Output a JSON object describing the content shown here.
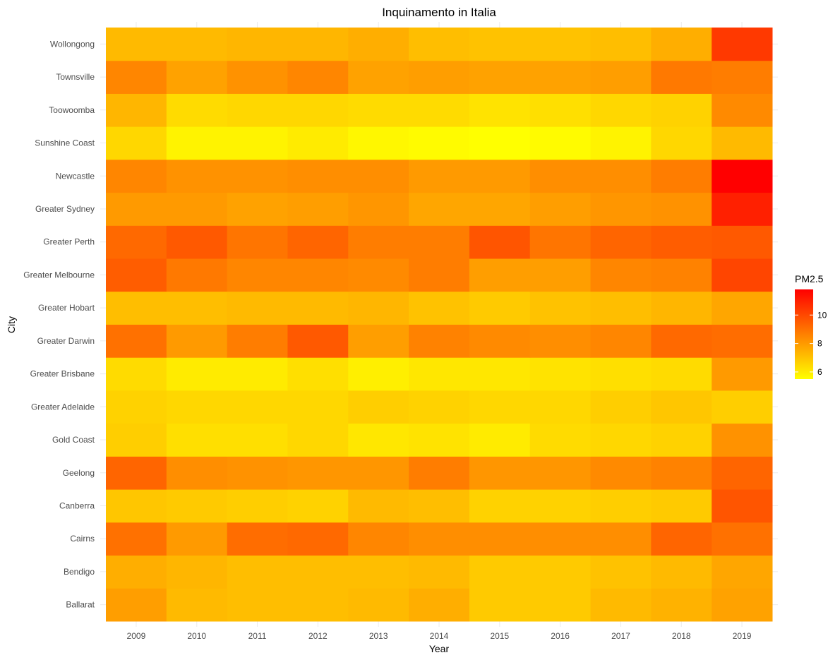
{
  "chart_data": {
    "type": "heatmap",
    "title": "Inquinamento in Italia",
    "xlabel": "Year",
    "ylabel": "City",
    "x": [
      "2009",
      "2010",
      "2011",
      "2012",
      "2013",
      "2014",
      "2015",
      "2016",
      "2017",
      "2018",
      "2019"
    ],
    "y": [
      "Ballarat",
      "Bendigo",
      "Cairns",
      "Canberra",
      "Geelong",
      "Gold Coast",
      "Greater Adelaide",
      "Greater Brisbane",
      "Greater Darwin",
      "Greater Hobart",
      "Greater Melbourne",
      "Greater Perth",
      "Greater Sydney",
      "Newcastle",
      "Sunshine Coast",
      "Toowoomba",
      "Townsville",
      "Wollongong"
    ],
    "values": [
      [
        7.9,
        7.2,
        7.1,
        7.1,
        7.2,
        7.5,
        6.8,
        6.8,
        7.2,
        7.4,
        7.8
      ],
      [
        7.5,
        7.3,
        7.1,
        7.1,
        7.1,
        7.2,
        6.8,
        6.8,
        7.0,
        7.2,
        7.7
      ],
      [
        9.0,
        8.0,
        9.1,
        9.2,
        8.5,
        8.3,
        8.3,
        8.3,
        8.3,
        9.3,
        9.0
      ],
      [
        6.9,
        6.8,
        6.7,
        6.6,
        7.2,
        7.1,
        6.6,
        6.6,
        6.7,
        6.8,
        9.7
      ],
      [
        9.3,
        8.3,
        8.2,
        8.1,
        8.1,
        8.7,
        8.1,
        8.1,
        8.4,
        8.6,
        9.3
      ],
      [
        6.7,
        6.3,
        6.3,
        6.5,
        6.1,
        6.2,
        6.0,
        6.4,
        6.5,
        6.6,
        8.2
      ],
      [
        6.6,
        6.5,
        6.5,
        6.5,
        6.7,
        6.6,
        6.5,
        6.5,
        6.7,
        6.9,
        6.7
      ],
      [
        6.4,
        6.0,
        6.0,
        6.3,
        5.9,
        6.1,
        6.1,
        6.2,
        6.3,
        6.4,
        8.0
      ],
      [
        9.0,
        8.0,
        8.7,
        9.6,
        7.9,
        8.6,
        8.4,
        8.3,
        8.5,
        9.2,
        9.1
      ],
      [
        7.1,
        7.1,
        7.2,
        7.2,
        7.3,
        7.0,
        6.8,
        7.0,
        7.1,
        7.3,
        7.7
      ],
      [
        9.5,
        8.8,
        8.5,
        8.5,
        8.4,
        8.7,
        7.9,
        7.9,
        8.5,
        8.6,
        10.1
      ],
      [
        9.2,
        9.6,
        8.9,
        9.3,
        8.7,
        8.7,
        9.7,
        8.9,
        9.3,
        9.5,
        9.6
      ],
      [
        8.0,
        8.0,
        7.8,
        7.9,
        8.1,
        7.7,
        7.7,
        7.9,
        8.1,
        8.2,
        11.0
      ],
      [
        8.5,
        8.2,
        8.2,
        8.3,
        8.3,
        8.0,
        8.0,
        8.3,
        8.3,
        8.7,
        11.8
      ],
      [
        6.5,
        5.8,
        5.8,
        6.0,
        5.7,
        5.6,
        5.5,
        5.6,
        5.8,
        6.5,
        7.2
      ],
      [
        7.3,
        6.4,
        6.5,
        6.5,
        6.4,
        6.4,
        6.2,
        6.3,
        6.5,
        6.6,
        8.4
      ],
      [
        8.5,
        7.8,
        8.2,
        8.5,
        7.8,
        7.9,
        7.8,
        7.8,
        7.9,
        8.8,
        8.7
      ],
      [
        7.2,
        7.2,
        7.3,
        7.3,
        7.5,
        7.1,
        7.0,
        7.0,
        7.1,
        7.5,
        10.4
      ]
    ],
    "legend": {
      "title": "PM2.5",
      "ticks": [
        6,
        8,
        10
      ],
      "range": [
        5.5,
        11.8
      ],
      "placement": "right",
      "low_color": "#ffff00",
      "high_color": "#ff0000"
    },
    "grid": false
  }
}
